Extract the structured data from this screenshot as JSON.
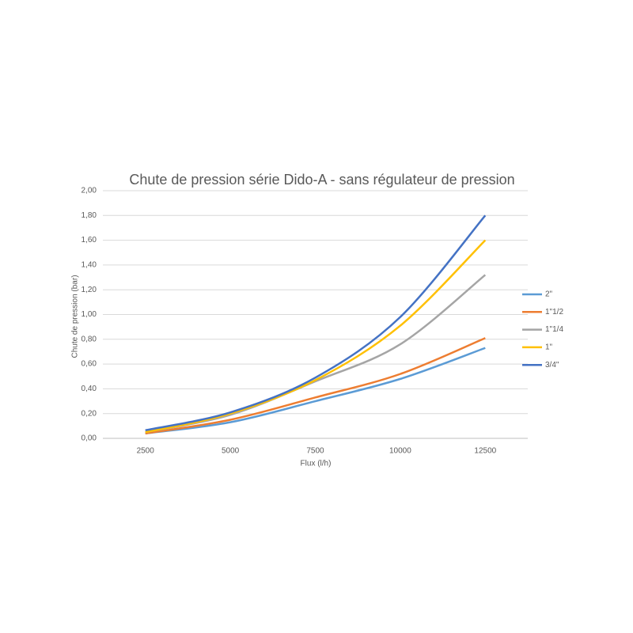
{
  "chart_data": {
    "type": "line",
    "title": "Chute de pression série Dido-A - sans régulateur de pression",
    "x_label": "Flux (l/h)",
    "y_label": "Chute de pression (bar)",
    "x": [
      2500,
      5000,
      7500,
      10000,
      12500
    ],
    "xlim": [
      1250,
      13750
    ],
    "xticks": [
      2500,
      5000,
      7500,
      10000,
      12500
    ],
    "ylim": [
      0,
      2
    ],
    "yticks": [
      {
        "value": 0,
        "label": "0,00"
      },
      {
        "value": 0.2,
        "label": "0,20"
      },
      {
        "value": 0.4,
        "label": "0,40"
      },
      {
        "value": 0.6,
        "label": "0,60"
      },
      {
        "value": 0.8,
        "label": "0,80"
      },
      {
        "value": 1.0,
        "label": "1,00"
      },
      {
        "value": 1.2,
        "label": "1,20"
      },
      {
        "value": 1.4,
        "label": "1,40"
      },
      {
        "value": 1.6,
        "label": "1,60"
      },
      {
        "value": 1.8,
        "label": "1,80"
      },
      {
        "value": 2.0,
        "label": "2,00"
      }
    ],
    "grid": true,
    "legend": "right",
    "series": [
      {
        "name": "2\"",
        "color": "#5b9bd5",
        "values": [
          0.04,
          0.13,
          0.3,
          0.48,
          0.73
        ]
      },
      {
        "name": "1\"1/2",
        "color": "#ed7d31",
        "values": [
          0.04,
          0.15,
          0.33,
          0.52,
          0.81
        ]
      },
      {
        "name": "1\"1/4",
        "color": "#a5a5a5",
        "values": [
          0.05,
          0.19,
          0.46,
          0.76,
          1.32
        ]
      },
      {
        "name": "1\"",
        "color": "#ffc000",
        "values": [
          0.05,
          0.2,
          0.47,
          0.91,
          1.6
        ]
      },
      {
        "name": "3/4\"",
        "color": "#4472c4",
        "values": [
          0.065,
          0.21,
          0.49,
          0.98,
          1.8
        ]
      }
    ]
  }
}
